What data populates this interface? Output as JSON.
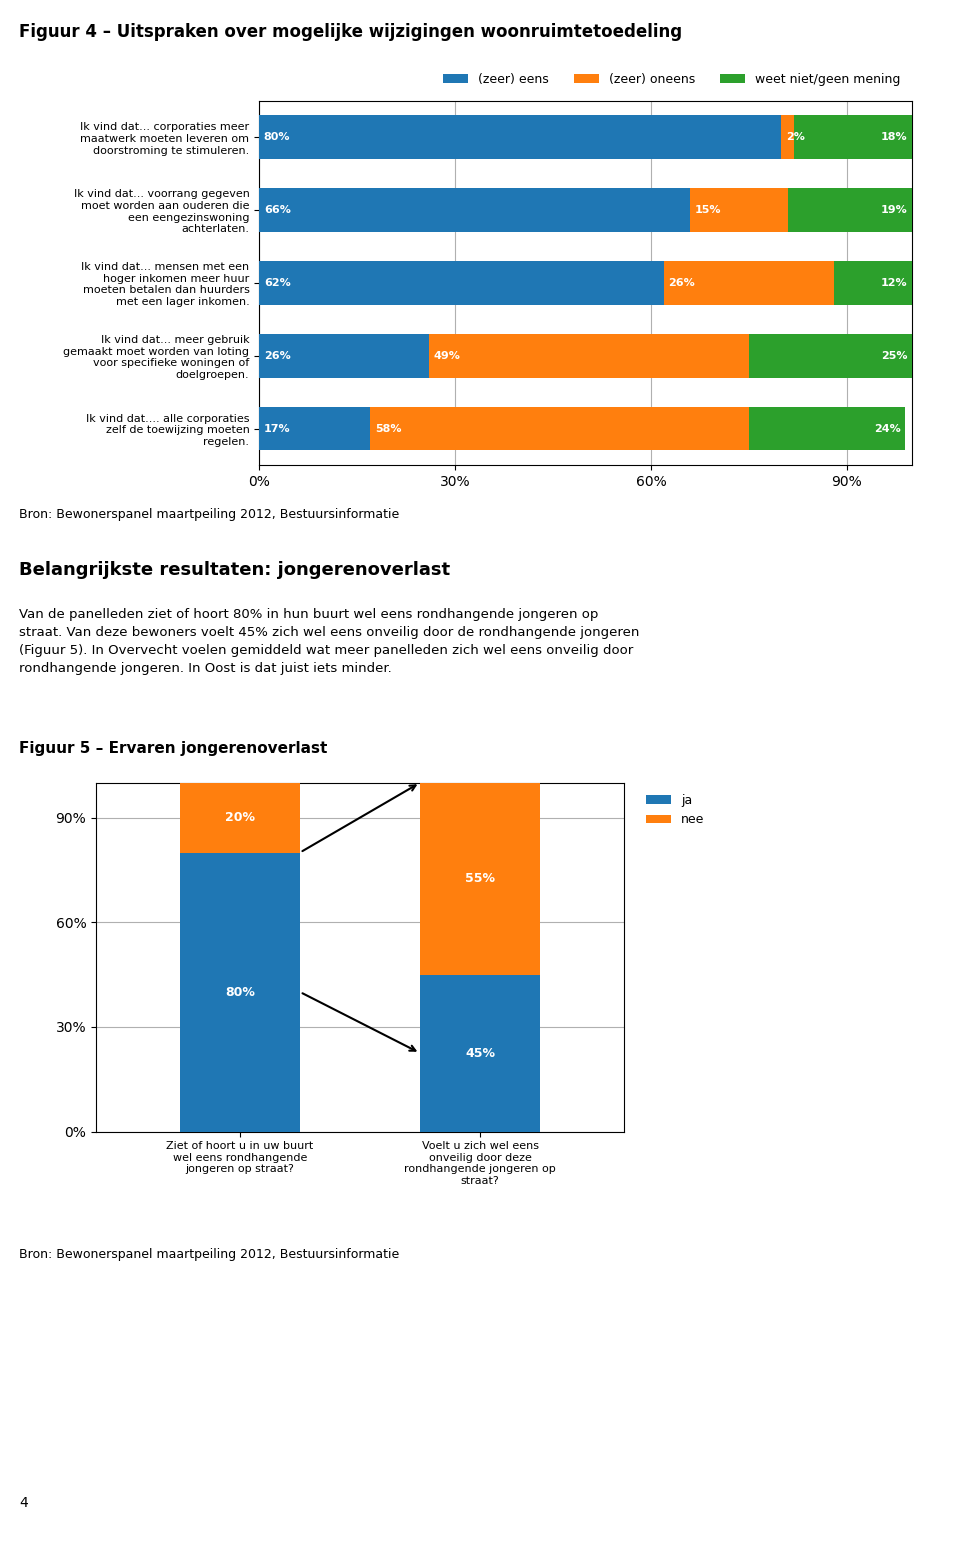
{
  "chart_data": [
    {
      "type": "bar",
      "orientation": "horizontal",
      "stacked": true,
      "title": "Figuur 4 – Uitspraken over mogelijke wijzigingen woonruimtetoedeling",
      "categories": [
        "Ik vind dat... corporaties meer\nmaatwerk moeten leveren om\ndoorstroming te stimuleren.",
        "Ik vind dat... voorrang gegeven\nmoet worden aan ouderen die\neen eengezinswoning\nachterlaten.",
        "Ik vind dat... mensen met een\nhoger inkomen meer huur\nmoeten betalen dan huurders\nmet een lager inkomen.",
        "Ik vind dat... meer gebruik\ngemaakt moet worden van loting\nvoor specifieke woningen of\ndoelgroepen.",
        "Ik vind dat.... alle corporaties\nzelf de toewijzing moeten\nregelen."
      ],
      "series": [
        {
          "name": "(zeer) eens",
          "values": [
            80,
            66,
            62,
            26,
            17
          ],
          "value_labels": [
            "80%",
            "66%",
            "62%",
            "26%",
            "17%"
          ]
        },
        {
          "name": "(zeer) oneens",
          "values": [
            2,
            15,
            26,
            49,
            58
          ],
          "value_labels": [
            "2%",
            "15%",
            "26%",
            "49%",
            "58%"
          ]
        },
        {
          "name": "weet niet/geen mening",
          "values": [
            18,
            19,
            12,
            25,
            24
          ],
          "value_labels": [
            "18%",
            "19%",
            "12%",
            "25%",
            "24%"
          ]
        }
      ],
      "xlim": [
        0,
        100
      ],
      "xticks": [
        {
          "value": 0,
          "label": "0%"
        },
        {
          "value": 30,
          "label": "30%"
        },
        {
          "value": 60,
          "label": "60%"
        },
        {
          "value": 90,
          "label": "90%"
        }
      ],
      "grid": true,
      "legend": "lower right",
      "data_labels": true,
      "source": "Bron: Bewonerspanel maartpeiling 2012, Bestuursinformatie"
    },
    {
      "type": "bar",
      "stacked": true,
      "title": "Figuur 5 – Ervaren jongerenoverlast",
      "categories": [
        "Ziet of hoort u in uw buurt\nwel eens rondhangende\njongeren op straat?",
        "Voelt u zich wel eens\nonveilig door deze\nrondhangende jongeren op\nstraat?"
      ],
      "series": [
        {
          "name": "ja",
          "values": [
            80,
            45
          ],
          "value_labels": [
            "80%",
            "45%"
          ]
        },
        {
          "name": "nee",
          "values": [
            20,
            55
          ],
          "value_labels": [
            "20%",
            "55%"
          ]
        }
      ],
      "ylim": [
        0,
        100
      ],
      "yticks": [
        {
          "value": 0,
          "label": "0%"
        },
        {
          "value": 30,
          "label": "30%"
        },
        {
          "value": 60,
          "label": "60%"
        },
        {
          "value": 90,
          "label": "90%"
        }
      ],
      "grid": true,
      "legend": "upper left",
      "data_labels": true,
      "source": "Bron: Bewonerspanel maartpeiling 2012, Bestuursinformatie"
    }
  ],
  "section_title": "Belangrijkste resultaten: jongerenoverlast",
  "body_text": "Van de panelleden ziet of hoort 80% in hun buurt wel eens rondhangende jongeren op\nstraat. Van deze bewoners voelt 45% zich wel eens onveilig door de rondhangende jongeren\n(Figuur 5). In Overvecht voelen gemiddeld wat meer panelleden zich wel eens onveilig door\nrondhangende jongeren. In Oost is dat juist iets minder.",
  "page_number": "4"
}
